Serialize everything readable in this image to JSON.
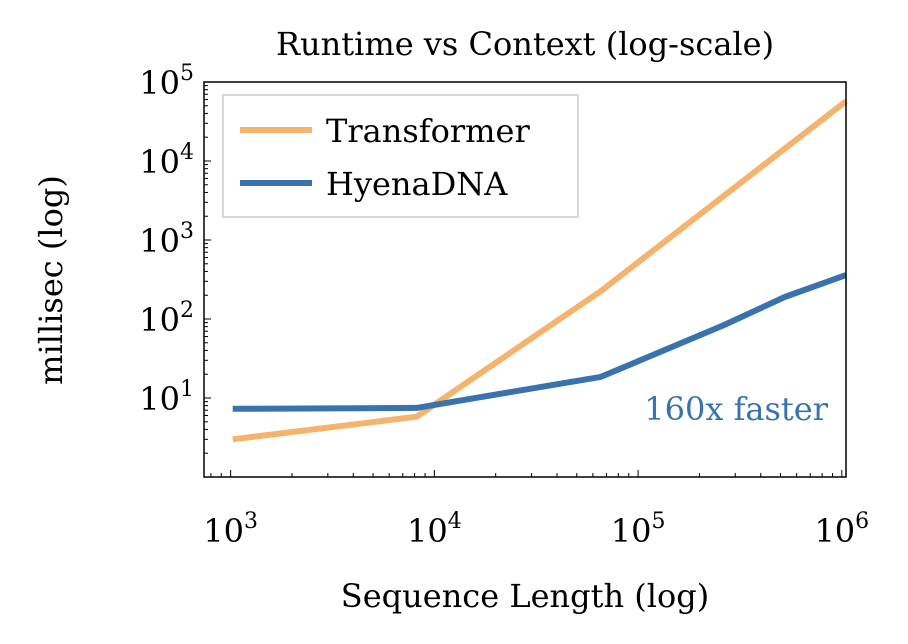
{
  "chart_data": {
    "type": "line",
    "title": "Runtime vs Context (log-scale)",
    "xlabel": "Sequence Length (log)",
    "ylabel": "millisec (log)",
    "xscale": "log",
    "yscale": "log",
    "xlim": [
      740,
      1048576
    ],
    "ylim": [
      1,
      100000
    ],
    "x_ticks": [
      {
        "value": 1000,
        "base": "10",
        "exp": "3"
      },
      {
        "value": 10000,
        "base": "10",
        "exp": "4"
      },
      {
        "value": 100000,
        "base": "10",
        "exp": "5"
      },
      {
        "value": 1000000,
        "base": "10",
        "exp": "6"
      }
    ],
    "y_ticks": [
      {
        "value": 10,
        "base": "10",
        "exp": "1"
      },
      {
        "value": 100,
        "base": "10",
        "exp": "2"
      },
      {
        "value": 1000,
        "base": "10",
        "exp": "3"
      },
      {
        "value": 10000,
        "base": "10",
        "exp": "4"
      },
      {
        "value": 100000,
        "base": "10",
        "exp": "5"
      }
    ],
    "grid": false,
    "legend_position": "top-left",
    "series": [
      {
        "name": "Transformer",
        "color": "#f5b46e",
        "x": [
          1024,
          8192,
          65536,
          1048576
        ],
        "y": [
          3,
          5.8,
          225,
          57000
        ]
      },
      {
        "name": "HyenaDNA",
        "color": "#3a72ad",
        "x": [
          1024,
          8192,
          65536,
          262144,
          524288,
          1048576
        ],
        "y": [
          7.3,
          7.5,
          18.5,
          83,
          190,
          360
        ]
      }
    ],
    "annotations": [
      {
        "text": "160x faster",
        "color": "#3a72ad"
      }
    ]
  }
}
